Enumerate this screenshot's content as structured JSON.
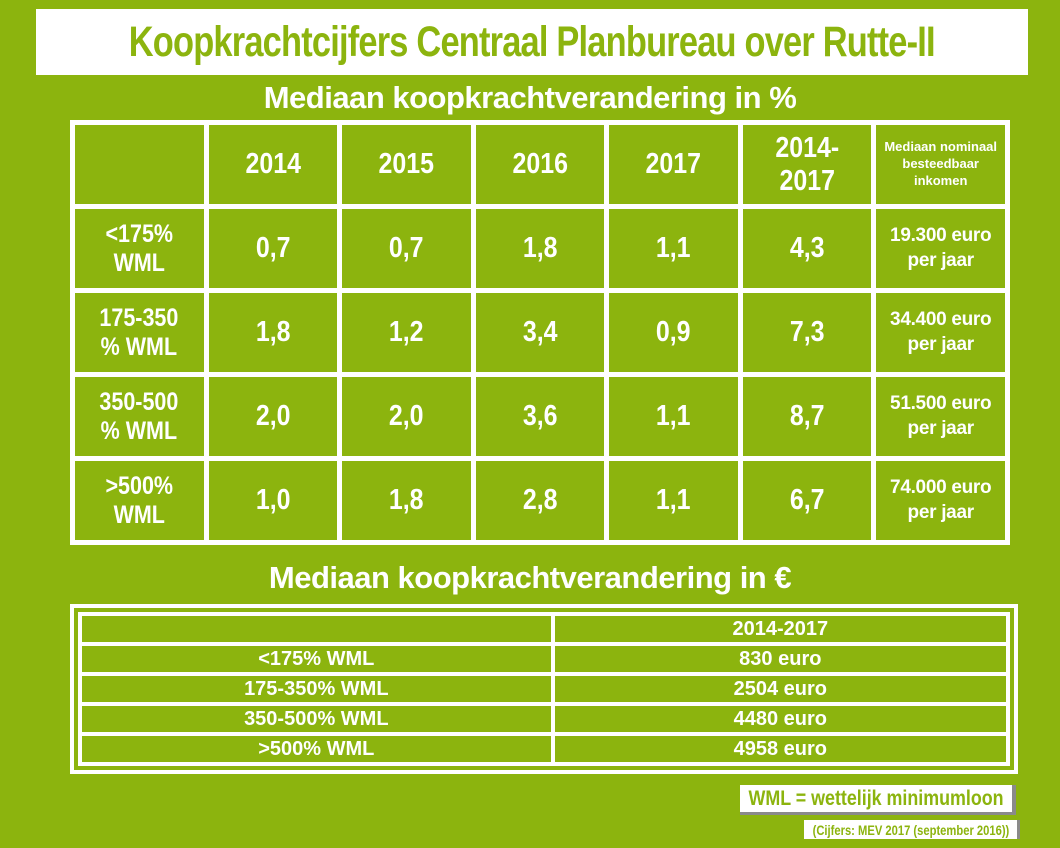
{
  "colors": {
    "background_green": "#8CB40E",
    "text_white": "#ffffff",
    "banner_background": "#ffffff",
    "shadow_gray": "#8a8a8a"
  },
  "banner": {
    "title": "Koopkrachtcijfers Centraal Planbureau over Rutte-II"
  },
  "section_percent": {
    "title": "Mediaan koopkrachtverandering in %",
    "table": {
      "year_headers": [
        "2014",
        "2015",
        "2016",
        "2017",
        "2014-2017"
      ],
      "income_header": "Mediaan nominaal\nbesteedbaar\ninkomen",
      "rows": [
        {
          "label": "<175%\nWML",
          "values": [
            "0,7",
            "0,7",
            "1,8",
            "1,1",
            "4,3"
          ],
          "income": "19.300 euro\nper jaar"
        },
        {
          "label": "175-350\n% WML",
          "values": [
            "1,8",
            "1,2",
            "3,4",
            "0,9",
            "7,3"
          ],
          "income": "34.400 euro\nper jaar"
        },
        {
          "label": "350-500\n% WML",
          "values": [
            "2,0",
            "2,0",
            "3,6",
            "1,1",
            "8,7"
          ],
          "income": "51.500 euro\nper jaar"
        },
        {
          "label": ">500%\nWML",
          "values": [
            "1,0",
            "1,8",
            "2,8",
            "1,1",
            "6,7"
          ],
          "income": "74.000 euro\nper jaar"
        }
      ]
    }
  },
  "section_euro": {
    "title": "Mediaan koopkrachtverandering in €",
    "table": {
      "col_header": "2014-2017",
      "rows": [
        {
          "label": "<175% WML",
          "value": "830 euro"
        },
        {
          "label": "175-350% WML",
          "value": "2504 euro"
        },
        {
          "label": "350-500% WML",
          "value": "4480 euro"
        },
        {
          "label": ">500% WML",
          "value": "4958 euro"
        }
      ]
    }
  },
  "footer": {
    "legend": "WML = wettelijk minimumloon",
    "source": "(Cijfers: MEV 2017 (september 2016))"
  },
  "chart_data": [
    {
      "type": "table",
      "title": "Mediaan koopkrachtverandering in %",
      "columns": [
        "",
        "2014",
        "2015",
        "2016",
        "2017",
        "2014-2017",
        "Mediaan nominaal besteedbaar inkomen"
      ],
      "rows": [
        [
          "<175% WML",
          "0,7",
          "0,7",
          "1,8",
          "1,1",
          "4,3",
          "19.300 euro per jaar"
        ],
        [
          "175-350% WML",
          "1,8",
          "1,2",
          "3,4",
          "0,9",
          "7,3",
          "34.400 euro per jaar"
        ],
        [
          "350-500% WML",
          "2,0",
          "2,0",
          "3,6",
          "1,1",
          "8,7",
          "51.500 euro per jaar"
        ],
        [
          ">500% WML",
          "1,0",
          "1,8",
          "2,8",
          "1,1",
          "6,7",
          "74.000 euro per jaar"
        ]
      ]
    },
    {
      "type": "table",
      "title": "Mediaan koopkrachtverandering in €",
      "columns": [
        "",
        "2014-2017"
      ],
      "rows": [
        [
          "<175% WML",
          "830 euro"
        ],
        [
          "175-350% WML",
          "2504 euro"
        ],
        [
          "350-500% WML",
          "4480 euro"
        ],
        [
          ">500% WML",
          "4958 euro"
        ]
      ]
    }
  ]
}
